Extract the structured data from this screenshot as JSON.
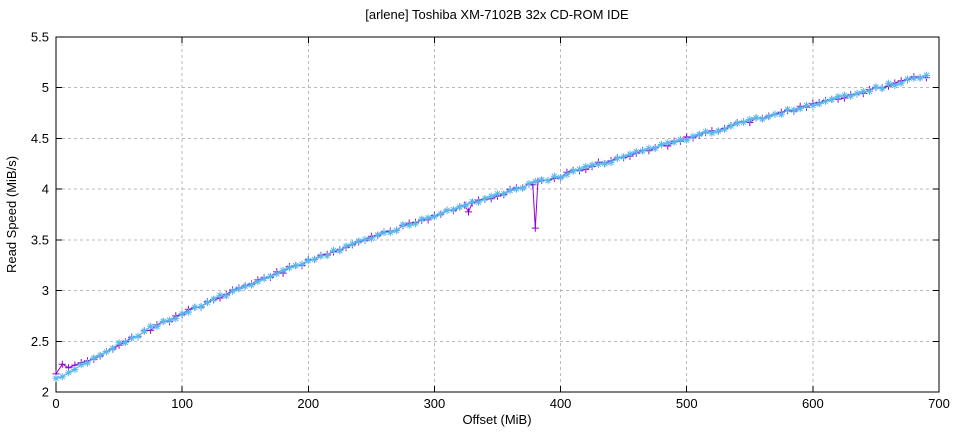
{
  "chart_data": {
    "type": "line",
    "title": "[arlene] Toshiba XM-7102B 32x CD-ROM IDE",
    "xlabel": "Offset (MiB)",
    "ylabel": "Read Speed (MiB/s)",
    "xlim": [
      0,
      700
    ],
    "ylim": [
      2,
      5.5
    ],
    "xticks": [
      0,
      100,
      200,
      300,
      400,
      500,
      600,
      700
    ],
    "yticks": [
      2,
      2.5,
      3,
      3.5,
      4,
      4.5,
      5,
      5.5
    ],
    "grid": true,
    "legend": "none",
    "colors": {
      "background": "#ffffff",
      "border": "#000000",
      "grid": "#b9b9b9",
      "series1": "#9400d3",
      "series2": "#56b8ec"
    },
    "series": [
      {
        "id": "series-1",
        "style": "linespoints",
        "marker": "plus",
        "color": "#9400d3",
        "points": [
          [
            0,
            2.19
          ],
          [
            5,
            2.26
          ],
          [
            10,
            2.25
          ],
          [
            15,
            2.27
          ],
          [
            20,
            2.3
          ],
          [
            25,
            2.31
          ],
          [
            30,
            2.34
          ],
          [
            35,
            2.37
          ],
          [
            40,
            2.41
          ],
          [
            45,
            2.44
          ],
          [
            50,
            2.47
          ],
          [
            55,
            2.5
          ],
          [
            60,
            2.53
          ],
          [
            65,
            2.56
          ],
          [
            70,
            2.59
          ],
          [
            75,
            2.62
          ],
          [
            80,
            2.65
          ],
          [
            85,
            2.68
          ],
          [
            90,
            2.71
          ],
          [
            95,
            2.74
          ],
          [
            100,
            2.77
          ],
          [
            105,
            2.8
          ],
          [
            110,
            2.83
          ],
          [
            115,
            2.85
          ],
          [
            120,
            2.88
          ],
          [
            125,
            2.91
          ],
          [
            130,
            2.93
          ],
          [
            135,
            2.96
          ],
          [
            140,
            2.99
          ],
          [
            145,
            3.01
          ],
          [
            150,
            3.04
          ],
          [
            155,
            3.07
          ],
          [
            160,
            3.09
          ],
          [
            165,
            3.12
          ],
          [
            170,
            3.14
          ],
          [
            175,
            3.17
          ],
          [
            180,
            3.19
          ],
          [
            185,
            3.22
          ],
          [
            190,
            3.24
          ],
          [
            195,
            3.26
          ],
          [
            200,
            3.29
          ],
          [
            205,
            3.31
          ],
          [
            210,
            3.34
          ],
          [
            215,
            3.36
          ],
          [
            220,
            3.38
          ],
          [
            225,
            3.41
          ],
          [
            230,
            3.43
          ],
          [
            235,
            3.45
          ],
          [
            240,
            3.47
          ],
          [
            245,
            3.5
          ],
          [
            250,
            3.52
          ],
          [
            255,
            3.54
          ],
          [
            260,
            3.56
          ],
          [
            265,
            3.58
          ],
          [
            270,
            3.61
          ],
          [
            275,
            3.63
          ],
          [
            280,
            3.65
          ],
          [
            285,
            3.67
          ],
          [
            290,
            3.69
          ],
          [
            295,
            3.71
          ],
          [
            300,
            3.74
          ],
          [
            305,
            3.76
          ],
          [
            310,
            3.78
          ],
          [
            315,
            3.8
          ],
          [
            320,
            3.83
          ],
          [
            324,
            3.85
          ],
          [
            327,
            3.79
          ],
          [
            330,
            3.87
          ],
          [
            335,
            3.88
          ],
          [
            340,
            3.9
          ],
          [
            345,
            3.92
          ],
          [
            350,
            3.94
          ],
          [
            355,
            3.96
          ],
          [
            360,
            3.98
          ],
          [
            365,
            4.0
          ],
          [
            370,
            4.02
          ],
          [
            375,
            4.04
          ],
          [
            378,
            4.05
          ],
          [
            380,
            3.63
          ],
          [
            382,
            4.09
          ],
          [
            385,
            4.08
          ],
          [
            390,
            4.1
          ],
          [
            395,
            4.12
          ],
          [
            400,
            4.13
          ],
          [
            405,
            4.15
          ],
          [
            410,
            4.17
          ],
          [
            415,
            4.19
          ],
          [
            420,
            4.21
          ],
          [
            425,
            4.23
          ],
          [
            430,
            4.25
          ],
          [
            435,
            4.26
          ],
          [
            440,
            4.28
          ],
          [
            445,
            4.3
          ],
          [
            450,
            4.32
          ],
          [
            455,
            4.34
          ],
          [
            460,
            4.36
          ],
          [
            465,
            4.37
          ],
          [
            470,
            4.39
          ],
          [
            475,
            4.41
          ],
          [
            480,
            4.43
          ],
          [
            485,
            4.44
          ],
          [
            490,
            4.46
          ],
          [
            495,
            4.48
          ],
          [
            500,
            4.5
          ],
          [
            505,
            4.51
          ],
          [
            510,
            4.53
          ],
          [
            515,
            4.55
          ],
          [
            520,
            4.57
          ],
          [
            525,
            4.58
          ],
          [
            530,
            4.6
          ],
          [
            535,
            4.62
          ],
          [
            540,
            4.64
          ],
          [
            545,
            4.65
          ],
          [
            550,
            4.67
          ],
          [
            555,
            4.69
          ],
          [
            560,
            4.7
          ],
          [
            565,
            4.72
          ],
          [
            570,
            4.74
          ],
          [
            575,
            4.75
          ],
          [
            580,
            4.77
          ],
          [
            585,
            4.78
          ],
          [
            590,
            4.8
          ],
          [
            595,
            4.82
          ],
          [
            600,
            4.83
          ],
          [
            605,
            4.85
          ],
          [
            610,
            4.87
          ],
          [
            615,
            4.88
          ],
          [
            620,
            4.9
          ],
          [
            625,
            4.91
          ],
          [
            630,
            4.93
          ],
          [
            635,
            4.95
          ],
          [
            640,
            4.96
          ],
          [
            645,
            4.98
          ],
          [
            650,
            4.99
          ],
          [
            655,
            5.01
          ],
          [
            660,
            5.03
          ],
          [
            665,
            5.04
          ],
          [
            670,
            5.06
          ],
          [
            675,
            5.07
          ],
          [
            680,
            5.09
          ],
          [
            685,
            5.1
          ],
          [
            690,
            5.11
          ]
        ]
      },
      {
        "id": "series-2",
        "style": "linespoints",
        "marker": "asterisk",
        "color": "#56b8ec",
        "points": [
          [
            0,
            2.12
          ],
          [
            5,
            2.15
          ],
          [
            10,
            2.2
          ],
          [
            15,
            2.23
          ],
          [
            20,
            2.27
          ],
          [
            25,
            2.3
          ],
          [
            30,
            2.34
          ],
          [
            35,
            2.37
          ],
          [
            40,
            2.4
          ],
          [
            45,
            2.44
          ],
          [
            50,
            2.47
          ],
          [
            55,
            2.5
          ],
          [
            60,
            2.53
          ],
          [
            65,
            2.56
          ],
          [
            70,
            2.59
          ],
          [
            75,
            2.63
          ],
          [
            80,
            2.65
          ],
          [
            85,
            2.68
          ],
          [
            90,
            2.71
          ],
          [
            95,
            2.74
          ],
          [
            100,
            2.77
          ],
          [
            105,
            2.8
          ],
          [
            110,
            2.83
          ],
          [
            115,
            2.85
          ],
          [
            120,
            2.88
          ],
          [
            125,
            2.91
          ],
          [
            130,
            2.94
          ],
          [
            135,
            2.96
          ],
          [
            140,
            2.99
          ],
          [
            145,
            3.01
          ],
          [
            150,
            3.04
          ],
          [
            155,
            3.07
          ],
          [
            160,
            3.09
          ],
          [
            165,
            3.12
          ],
          [
            170,
            3.14
          ],
          [
            175,
            3.17
          ],
          [
            180,
            3.19
          ],
          [
            185,
            3.21
          ],
          [
            190,
            3.24
          ],
          [
            195,
            3.26
          ],
          [
            200,
            3.29
          ],
          [
            205,
            3.31
          ],
          [
            210,
            3.34
          ],
          [
            215,
            3.36
          ],
          [
            220,
            3.38
          ],
          [
            225,
            3.41
          ],
          [
            230,
            3.43
          ],
          [
            235,
            3.45
          ],
          [
            240,
            3.47
          ],
          [
            245,
            3.5
          ],
          [
            250,
            3.52
          ],
          [
            255,
            3.54
          ],
          [
            260,
            3.56
          ],
          [
            265,
            3.58
          ],
          [
            270,
            3.61
          ],
          [
            275,
            3.63
          ],
          [
            280,
            3.65
          ],
          [
            285,
            3.67
          ],
          [
            290,
            3.69
          ],
          [
            295,
            3.71
          ],
          [
            300,
            3.74
          ],
          [
            305,
            3.76
          ],
          [
            310,
            3.78
          ],
          [
            315,
            3.8
          ],
          [
            320,
            3.82
          ],
          [
            325,
            3.84
          ],
          [
            330,
            3.86
          ],
          [
            335,
            3.88
          ],
          [
            340,
            3.9
          ],
          [
            345,
            3.92
          ],
          [
            350,
            3.94
          ],
          [
            355,
            3.96
          ],
          [
            360,
            3.98
          ],
          [
            365,
            4.0
          ],
          [
            370,
            4.02
          ],
          [
            375,
            4.04
          ],
          [
            380,
            4.06
          ],
          [
            385,
            4.08
          ],
          [
            390,
            4.1
          ],
          [
            395,
            4.12
          ],
          [
            400,
            4.13
          ],
          [
            405,
            4.15
          ],
          [
            410,
            4.17
          ],
          [
            415,
            4.19
          ],
          [
            420,
            4.21
          ],
          [
            425,
            4.23
          ],
          [
            430,
            4.25
          ],
          [
            435,
            4.26
          ],
          [
            440,
            4.28
          ],
          [
            445,
            4.3
          ],
          [
            450,
            4.32
          ],
          [
            455,
            4.34
          ],
          [
            460,
            4.36
          ],
          [
            465,
            4.37
          ],
          [
            470,
            4.39
          ],
          [
            475,
            4.41
          ],
          [
            480,
            4.43
          ],
          [
            485,
            4.44
          ],
          [
            490,
            4.46
          ],
          [
            495,
            4.48
          ],
          [
            500,
            4.5
          ],
          [
            505,
            4.51
          ],
          [
            510,
            4.53
          ],
          [
            515,
            4.55
          ],
          [
            520,
            4.57
          ],
          [
            525,
            4.58
          ],
          [
            530,
            4.6
          ],
          [
            535,
            4.62
          ],
          [
            540,
            4.64
          ],
          [
            545,
            4.65
          ],
          [
            550,
            4.67
          ],
          [
            555,
            4.69
          ],
          [
            560,
            4.7
          ],
          [
            565,
            4.72
          ],
          [
            570,
            4.74
          ],
          [
            575,
            4.75
          ],
          [
            580,
            4.77
          ],
          [
            585,
            4.78
          ],
          [
            590,
            4.8
          ],
          [
            595,
            4.82
          ],
          [
            600,
            4.83
          ],
          [
            605,
            4.85
          ],
          [
            610,
            4.87
          ],
          [
            615,
            4.88
          ],
          [
            620,
            4.9
          ],
          [
            625,
            4.91
          ],
          [
            630,
            4.93
          ],
          [
            635,
            4.95
          ],
          [
            640,
            4.96
          ],
          [
            645,
            4.98
          ],
          [
            650,
            4.99
          ],
          [
            655,
            5.01
          ],
          [
            660,
            5.03
          ],
          [
            665,
            5.04
          ],
          [
            670,
            5.06
          ],
          [
            675,
            5.07
          ],
          [
            680,
            5.09
          ],
          [
            685,
            5.11
          ],
          [
            690,
            5.13
          ]
        ]
      }
    ]
  }
}
